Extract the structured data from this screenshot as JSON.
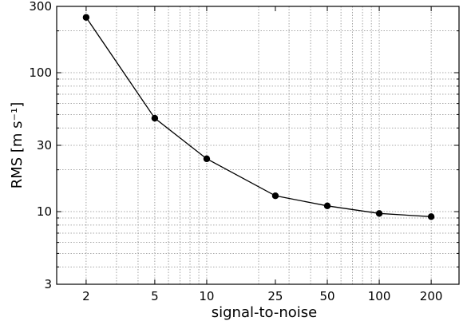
{
  "chart_data": {
    "type": "line",
    "xlabel": "signal-to-noise",
    "ylabel": "RMS [m s⁻¹]",
    "x_scale": "log",
    "y_scale": "log",
    "xlim": [
      1.35,
      290
    ],
    "ylim": [
      3,
      300
    ],
    "x_ticks": [
      2,
      5,
      10,
      25,
      50,
      100,
      200
    ],
    "x_tick_labels": [
      "2",
      "5",
      "10",
      "25",
      "50",
      "100",
      "200"
    ],
    "y_ticks": [
      3,
      10,
      30,
      100,
      300
    ],
    "y_tick_labels": [
      "3",
      "10",
      "30",
      "100",
      "300"
    ],
    "grid": true,
    "series": [
      {
        "x": [
          2,
          5,
          10,
          25,
          50,
          100,
          200
        ],
        "values": [
          250,
          47,
          24,
          13,
          11,
          9.7,
          9.2
        ],
        "color": "#000000",
        "marker": "circle"
      }
    ]
  }
}
